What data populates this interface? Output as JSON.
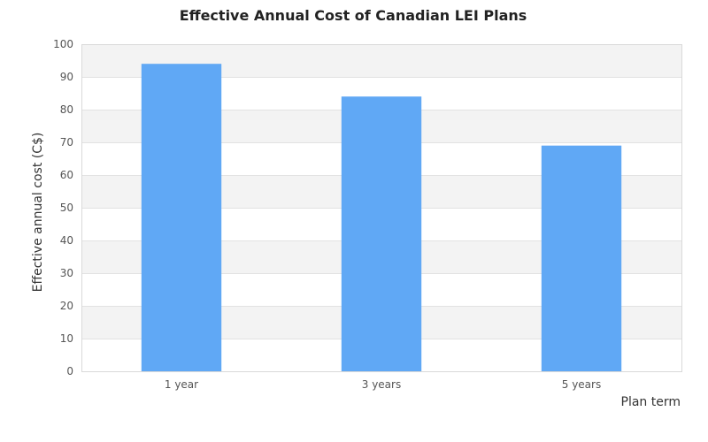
{
  "chart_data": {
    "type": "bar",
    "title": "Effective Annual Cost of Canadian LEI Plans",
    "xlabel": "Plan term",
    "ylabel": "Effective annual cost (C$)",
    "categories": [
      "1 year",
      "3 years",
      "5 years"
    ],
    "values": [
      94,
      84,
      69
    ],
    "ylim": [
      0,
      100
    ],
    "yticks": [
      0,
      10,
      20,
      30,
      40,
      50,
      60,
      70,
      80,
      90,
      100
    ],
    "grid": true,
    "bar_color": "#60a8f5",
    "band_color": "#f3f3f3"
  }
}
